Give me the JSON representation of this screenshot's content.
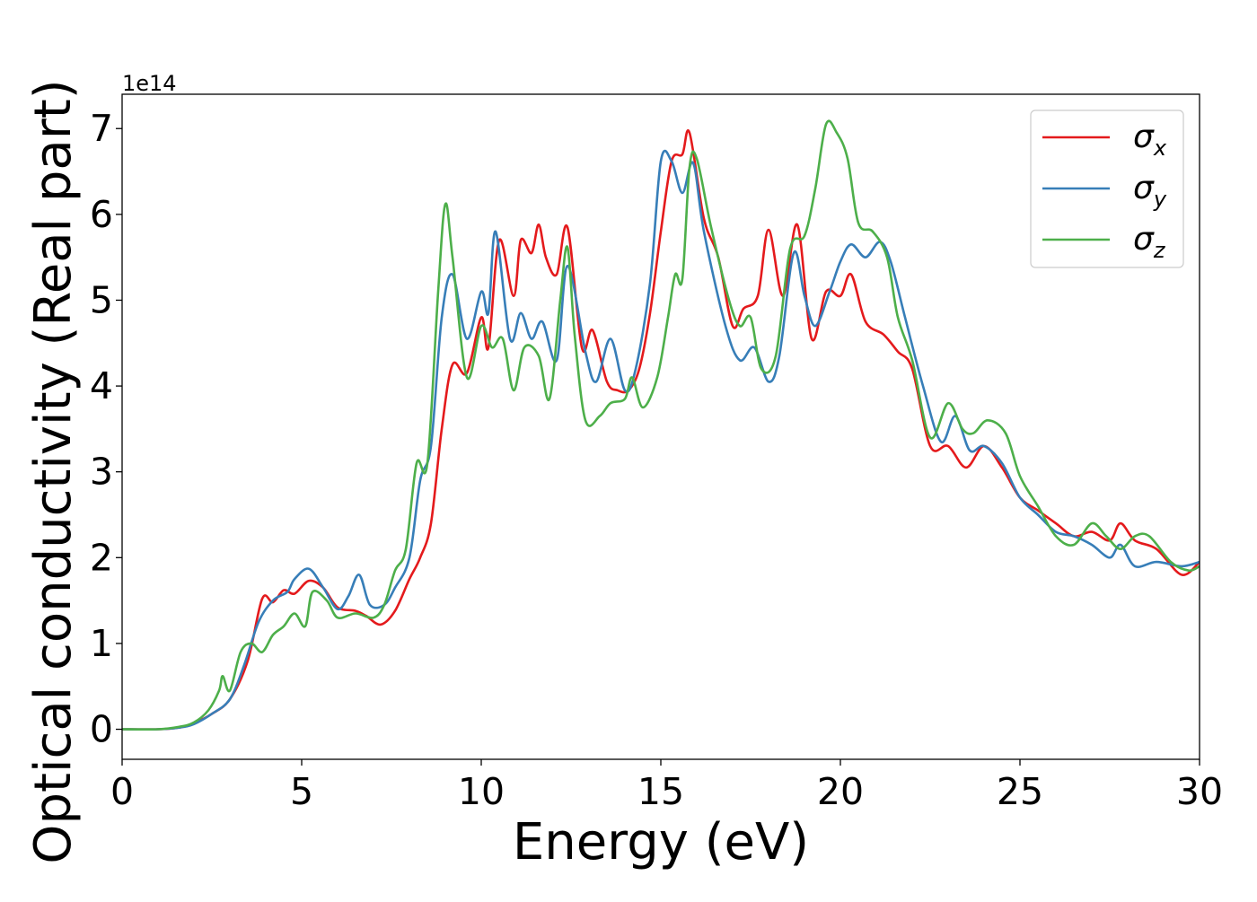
{
  "chart_data": {
    "type": "line",
    "title": "",
    "xlabel": "Energy (eV)",
    "ylabel": "Optical conductivity (Real part)",
    "y_offset_label": "1e14",
    "xlim": [
      0,
      30
    ],
    "ylim": [
      -0.35,
      7.4
    ],
    "x_ticks": [
      0,
      5,
      10,
      15,
      20,
      25,
      30
    ],
    "y_ticks": [
      0,
      1,
      2,
      3,
      4,
      5,
      6,
      7
    ],
    "grid": false,
    "legend_position": "top-right",
    "series": [
      {
        "name": "σx",
        "color": "#e41a1c",
        "points": [
          [
            0,
            0
          ],
          [
            1,
            0
          ],
          [
            1.6,
            0.02
          ],
          [
            2,
            0.07
          ],
          [
            2.5,
            0.18
          ],
          [
            3,
            0.35
          ],
          [
            3.5,
            0.8
          ],
          [
            3.9,
            1.52
          ],
          [
            4.2,
            1.48
          ],
          [
            4.5,
            1.62
          ],
          [
            4.8,
            1.58
          ],
          [
            5.2,
            1.73
          ],
          [
            5.6,
            1.65
          ],
          [
            6,
            1.42
          ],
          [
            6.5,
            1.38
          ],
          [
            6.8,
            1.32
          ],
          [
            7.2,
            1.22
          ],
          [
            7.6,
            1.38
          ],
          [
            8,
            1.75
          ],
          [
            8.3,
            2.0
          ],
          [
            8.6,
            2.4
          ],
          [
            8.9,
            3.5
          ],
          [
            9.2,
            4.25
          ],
          [
            9.6,
            4.15
          ],
          [
            10,
            4.8
          ],
          [
            10.2,
            4.45
          ],
          [
            10.5,
            5.7
          ],
          [
            10.9,
            5.05
          ],
          [
            11.1,
            5.7
          ],
          [
            11.4,
            5.55
          ],
          [
            11.6,
            5.88
          ],
          [
            11.8,
            5.5
          ],
          [
            12.1,
            5.3
          ],
          [
            12.4,
            5.85
          ],
          [
            12.8,
            4.45
          ],
          [
            13.1,
            4.65
          ],
          [
            13.5,
            4.05
          ],
          [
            13.8,
            3.95
          ],
          [
            14.1,
            3.95
          ],
          [
            14.4,
            4.2
          ],
          [
            14.7,
            4.85
          ],
          [
            15,
            5.8
          ],
          [
            15.3,
            6.62
          ],
          [
            15.6,
            6.7
          ],
          [
            15.8,
            6.95
          ],
          [
            16.2,
            5.95
          ],
          [
            16.6,
            5.5
          ],
          [
            17,
            4.7
          ],
          [
            17.3,
            4.9
          ],
          [
            17.7,
            5.05
          ],
          [
            18,
            5.82
          ],
          [
            18.4,
            5.05
          ],
          [
            18.8,
            5.88
          ],
          [
            19.2,
            4.55
          ],
          [
            19.6,
            5.1
          ],
          [
            20,
            5.05
          ],
          [
            20.3,
            5.3
          ],
          [
            20.7,
            4.75
          ],
          [
            21.2,
            4.6
          ],
          [
            21.6,
            4.4
          ],
          [
            22,
            4.2
          ],
          [
            22.5,
            3.3
          ],
          [
            23,
            3.3
          ],
          [
            23.5,
            3.05
          ],
          [
            24,
            3.3
          ],
          [
            24.5,
            3.05
          ],
          [
            25,
            2.7
          ],
          [
            25.5,
            2.55
          ],
          [
            26,
            2.4
          ],
          [
            26.5,
            2.25
          ],
          [
            27,
            2.3
          ],
          [
            27.5,
            2.2
          ],
          [
            27.8,
            2.4
          ],
          [
            28.2,
            2.2
          ],
          [
            28.8,
            2.1
          ],
          [
            29.5,
            1.8
          ],
          [
            30,
            1.95
          ]
        ]
      },
      {
        "name": "σy",
        "color": "#377eb8",
        "points": [
          [
            0,
            0
          ],
          [
            1,
            0
          ],
          [
            1.6,
            0.02
          ],
          [
            2,
            0.06
          ],
          [
            2.5,
            0.18
          ],
          [
            3,
            0.35
          ],
          [
            3.4,
            0.75
          ],
          [
            3.8,
            1.25
          ],
          [
            4.2,
            1.5
          ],
          [
            4.6,
            1.6
          ],
          [
            4.8,
            1.75
          ],
          [
            5.2,
            1.87
          ],
          [
            5.6,
            1.65
          ],
          [
            6,
            1.4
          ],
          [
            6.3,
            1.55
          ],
          [
            6.6,
            1.8
          ],
          [
            6.9,
            1.45
          ],
          [
            7.3,
            1.45
          ],
          [
            7.6,
            1.65
          ],
          [
            8,
            2.0
          ],
          [
            8.3,
            2.9
          ],
          [
            8.6,
            3.3
          ],
          [
            8.9,
            4.8
          ],
          [
            9.2,
            5.3
          ],
          [
            9.6,
            4.55
          ],
          [
            10,
            5.1
          ],
          [
            10.2,
            4.85
          ],
          [
            10.4,
            5.8
          ],
          [
            10.8,
            4.55
          ],
          [
            11.1,
            4.85
          ],
          [
            11.4,
            4.55
          ],
          [
            11.7,
            4.75
          ],
          [
            12.1,
            4.3
          ],
          [
            12.4,
            5.4
          ],
          [
            12.9,
            4.4
          ],
          [
            13.2,
            4.05
          ],
          [
            13.6,
            4.55
          ],
          [
            14,
            3.95
          ],
          [
            14.3,
            4.2
          ],
          [
            14.7,
            5.2
          ],
          [
            15,
            6.62
          ],
          [
            15.3,
            6.62
          ],
          [
            15.6,
            6.25
          ],
          [
            15.9,
            6.6
          ],
          [
            16.2,
            5.8
          ],
          [
            16.8,
            4.7
          ],
          [
            17.2,
            4.3
          ],
          [
            17.6,
            4.45
          ],
          [
            18,
            4.05
          ],
          [
            18.3,
            4.35
          ],
          [
            18.7,
            5.55
          ],
          [
            19,
            5.05
          ],
          [
            19.3,
            4.7
          ],
          [
            19.7,
            5.1
          ],
          [
            20,
            5.45
          ],
          [
            20.3,
            5.65
          ],
          [
            20.7,
            5.5
          ],
          [
            21.1,
            5.68
          ],
          [
            21.4,
            5.45
          ],
          [
            21.8,
            4.8
          ],
          [
            22.3,
            4.0
          ],
          [
            22.8,
            3.35
          ],
          [
            23.2,
            3.65
          ],
          [
            23.6,
            3.25
          ],
          [
            24,
            3.3
          ],
          [
            24.5,
            3.1
          ],
          [
            25,
            2.7
          ],
          [
            25.5,
            2.5
          ],
          [
            26,
            2.3
          ],
          [
            26.5,
            2.25
          ],
          [
            27,
            2.15
          ],
          [
            27.5,
            2.0
          ],
          [
            27.8,
            2.15
          ],
          [
            28.2,
            1.9
          ],
          [
            28.8,
            1.95
          ],
          [
            29.5,
            1.9
          ],
          [
            30,
            1.95
          ]
        ]
      },
      {
        "name": "σz",
        "color": "#4daf4a",
        "points": [
          [
            0,
            0
          ],
          [
            1,
            0
          ],
          [
            1.6,
            0.03
          ],
          [
            2,
            0.08
          ],
          [
            2.4,
            0.22
          ],
          [
            2.7,
            0.45
          ],
          [
            2.8,
            0.62
          ],
          [
            3,
            0.45
          ],
          [
            3.3,
            0.9
          ],
          [
            3.6,
            1.0
          ],
          [
            3.9,
            0.9
          ],
          [
            4.2,
            1.1
          ],
          [
            4.5,
            1.2
          ],
          [
            4.8,
            1.35
          ],
          [
            5.1,
            1.2
          ],
          [
            5.3,
            1.6
          ],
          [
            5.7,
            1.5
          ],
          [
            6,
            1.3
          ],
          [
            6.5,
            1.35
          ],
          [
            7,
            1.3
          ],
          [
            7.3,
            1.45
          ],
          [
            7.6,
            1.85
          ],
          [
            7.9,
            2.1
          ],
          [
            8.2,
            3.1
          ],
          [
            8.5,
            3.1
          ],
          [
            8.8,
            5.1
          ],
          [
            9,
            6.12
          ],
          [
            9.2,
            5.5
          ],
          [
            9.6,
            4.1
          ],
          [
            10,
            4.7
          ],
          [
            10.3,
            4.45
          ],
          [
            10.6,
            4.55
          ],
          [
            10.9,
            3.95
          ],
          [
            11.2,
            4.45
          ],
          [
            11.6,
            4.35
          ],
          [
            11.9,
            3.85
          ],
          [
            12.2,
            5.0
          ],
          [
            12.4,
            5.62
          ],
          [
            12.6,
            4.6
          ],
          [
            12.9,
            3.6
          ],
          [
            13.3,
            3.65
          ],
          [
            13.6,
            3.8
          ],
          [
            14,
            3.85
          ],
          [
            14.2,
            4.1
          ],
          [
            14.5,
            3.75
          ],
          [
            14.9,
            4.1
          ],
          [
            15.2,
            4.8
          ],
          [
            15.4,
            5.3
          ],
          [
            15.6,
            5.25
          ],
          [
            15.8,
            6.55
          ],
          [
            16,
            6.65
          ],
          [
            16.4,
            5.85
          ],
          [
            16.9,
            5.0
          ],
          [
            17.2,
            4.7
          ],
          [
            17.5,
            4.8
          ],
          [
            17.8,
            4.2
          ],
          [
            18.2,
            4.35
          ],
          [
            18.6,
            5.6
          ],
          [
            19,
            5.75
          ],
          [
            19.3,
            6.3
          ],
          [
            19.6,
            7.05
          ],
          [
            19.9,
            6.95
          ],
          [
            20.2,
            6.65
          ],
          [
            20.5,
            5.9
          ],
          [
            20.9,
            5.8
          ],
          [
            21.3,
            5.5
          ],
          [
            21.6,
            4.8
          ],
          [
            22,
            4.3
          ],
          [
            22.5,
            3.4
          ],
          [
            23,
            3.8
          ],
          [
            23.4,
            3.5
          ],
          [
            23.7,
            3.45
          ],
          [
            24.1,
            3.6
          ],
          [
            24.6,
            3.45
          ],
          [
            25,
            2.95
          ],
          [
            25.5,
            2.6
          ],
          [
            26,
            2.25
          ],
          [
            26.5,
            2.15
          ],
          [
            27,
            2.4
          ],
          [
            27.4,
            2.25
          ],
          [
            27.8,
            2.1
          ],
          [
            28.2,
            2.25
          ],
          [
            28.6,
            2.25
          ],
          [
            29.2,
            1.95
          ],
          [
            29.7,
            1.85
          ],
          [
            30,
            1.9
          ]
        ]
      }
    ]
  }
}
